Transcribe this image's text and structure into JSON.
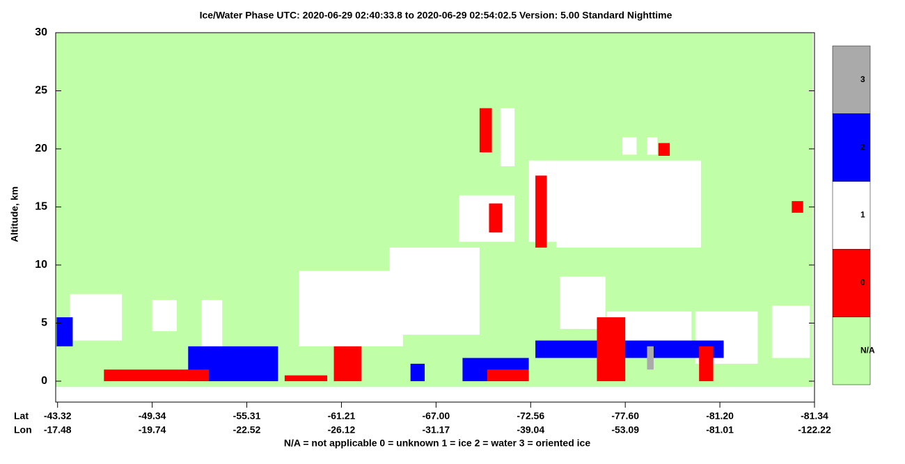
{
  "chart_data": {
    "type": "phase-curtain",
    "title": "Ice/Water Phase    UTC:  2020-06-29   02:40:33.8  to  2020-06-29   02:54:02.5    Version: 5.00  Standard Nighttime",
    "ylabel": "Altitude, km",
    "ylim": [
      -1.8,
      30
    ],
    "yticks": [
      0,
      5,
      10,
      15,
      20,
      25,
      30
    ],
    "xlim": [
      -0.02,
      8.0
    ],
    "xticks": [
      0,
      1,
      2,
      3,
      4,
      5,
      6,
      7,
      8
    ],
    "x_rows": [
      {
        "name": "Lat",
        "labels": [
          "-43.32",
          "-49.34",
          "-55.31",
          "-61.21",
          "-67.00",
          "-72.56",
          "-77.60",
          "-81.20",
          "-81.34"
        ]
      },
      {
        "name": "Lon",
        "labels": [
          "-17.48",
          "-19.74",
          "-22.52",
          "-26.12",
          "-31.17",
          "-39.04",
          "-53.09",
          "-81.01",
          "-122.22"
        ]
      }
    ],
    "colorbar": {
      "labels": [
        "N/A",
        "0",
        "1",
        "2",
        "3"
      ],
      "colors": [
        "#c0ffa8",
        "#ff0000",
        "#ffffff",
        "#0000ff",
        "#aaaaaa"
      ]
    },
    "footnote": "N/A = not applicable     0 = unknown     1 = ice     2 = water     3 = oriented ice",
    "regions": [
      {
        "x": [
          -0.02,
          7.98
        ],
        "y": [
          -0.5,
          30
        ],
        "phase": 0
      },
      {
        "x": [
          0.13,
          0.68
        ],
        "y": [
          3.5,
          7.5
        ],
        "phase": 2
      },
      {
        "x": [
          1.0,
          1.26
        ],
        "y": [
          4.3,
          7
        ],
        "phase": 2
      },
      {
        "x": [
          1.52,
          1.74
        ],
        "y": [
          3,
          7
        ],
        "phase": 2
      },
      {
        "x": [
          2.55,
          3.65
        ],
        "y": [
          3,
          9.5
        ],
        "phase": 2
      },
      {
        "x": [
          3.51,
          4.46
        ],
        "y": [
          4,
          11.5
        ],
        "phase": 2
      },
      {
        "x": [
          5.31,
          5.79
        ],
        "y": [
          4.5,
          9
        ],
        "phase": 2
      },
      {
        "x": [
          5.8,
          6.7
        ],
        "y": [
          2.5,
          6
        ],
        "phase": 2
      },
      {
        "x": [
          6.74,
          7.4
        ],
        "y": [
          1.5,
          6
        ],
        "phase": 2
      },
      {
        "x": [
          7.55,
          7.95
        ],
        "y": [
          2,
          6.5
        ],
        "phase": 2
      },
      {
        "x": [
          4.24,
          4.83
        ],
        "y": [
          12,
          16
        ],
        "phase": 2
      },
      {
        "x": [
          4.68,
          4.83
        ],
        "y": [
          18.5,
          23.5
        ],
        "phase": 2
      },
      {
        "x": [
          4.98,
          5.27
        ],
        "y": [
          12,
          19
        ],
        "phase": 2
      },
      {
        "x": [
          5.27,
          6.8
        ],
        "y": [
          11.5,
          19
        ],
        "phase": 2
      },
      {
        "x": [
          5.97,
          6.12
        ],
        "y": [
          19.5,
          21
        ],
        "phase": 2
      },
      {
        "x": [
          6.23,
          6.34
        ],
        "y": [
          19.5,
          21
        ],
        "phase": 2
      },
      {
        "x": [
          4.46,
          4.59
        ],
        "y": [
          19.7,
          23.5
        ],
        "phase": 1
      },
      {
        "x": [
          4.56,
          4.7
        ],
        "y": [
          12.8,
          15.3
        ],
        "phase": 1
      },
      {
        "x": [
          5.05,
          5.17
        ],
        "y": [
          11.5,
          17.7
        ],
        "phase": 1
      },
      {
        "x": [
          6.35,
          6.47
        ],
        "y": [
          19.4,
          20.5
        ],
        "phase": 1
      },
      {
        "x": [
          7.76,
          7.88
        ],
        "y": [
          14.5,
          15.5
        ],
        "phase": 1
      },
      {
        "x": [
          -0.01,
          0.16
        ],
        "y": [
          3,
          5.5
        ],
        "phase": 3
      },
      {
        "x": [
          1.38,
          2.33
        ],
        "y": [
          0,
          3
        ],
        "phase": 3
      },
      {
        "x": [
          4.28,
          4.98
        ],
        "y": [
          0,
          2
        ],
        "phase": 3
      },
      {
        "x": [
          5.05,
          7.04
        ],
        "y": [
          2,
          3.5
        ],
        "phase": 3
      },
      {
        "x": [
          0.49,
          1.6
        ],
        "y": [
          0,
          1
        ],
        "phase": 1
      },
      {
        "x": [
          2.92,
          3.21
        ],
        "y": [
          0,
          3
        ],
        "phase": 1
      },
      {
        "x": [
          4.54,
          4.98
        ],
        "y": [
          0,
          1
        ],
        "phase": 1
      },
      {
        "x": [
          5.7,
          6.0
        ],
        "y": [
          0,
          5.5
        ],
        "phase": 1
      },
      {
        "x": [
          6.78,
          6.93
        ],
        "y": [
          0,
          3
        ],
        "phase": 1
      },
      {
        "x": [
          2.4,
          2.85
        ],
        "y": [
          0,
          0.5
        ],
        "phase": 1
      },
      {
        "x": [
          3.73,
          3.88
        ],
        "y": [
          0,
          1.5
        ],
        "phase": 3
      },
      {
        "x": [
          6.23,
          6.3
        ],
        "y": [
          1,
          3
        ],
        "phase": 4
      }
    ]
  }
}
